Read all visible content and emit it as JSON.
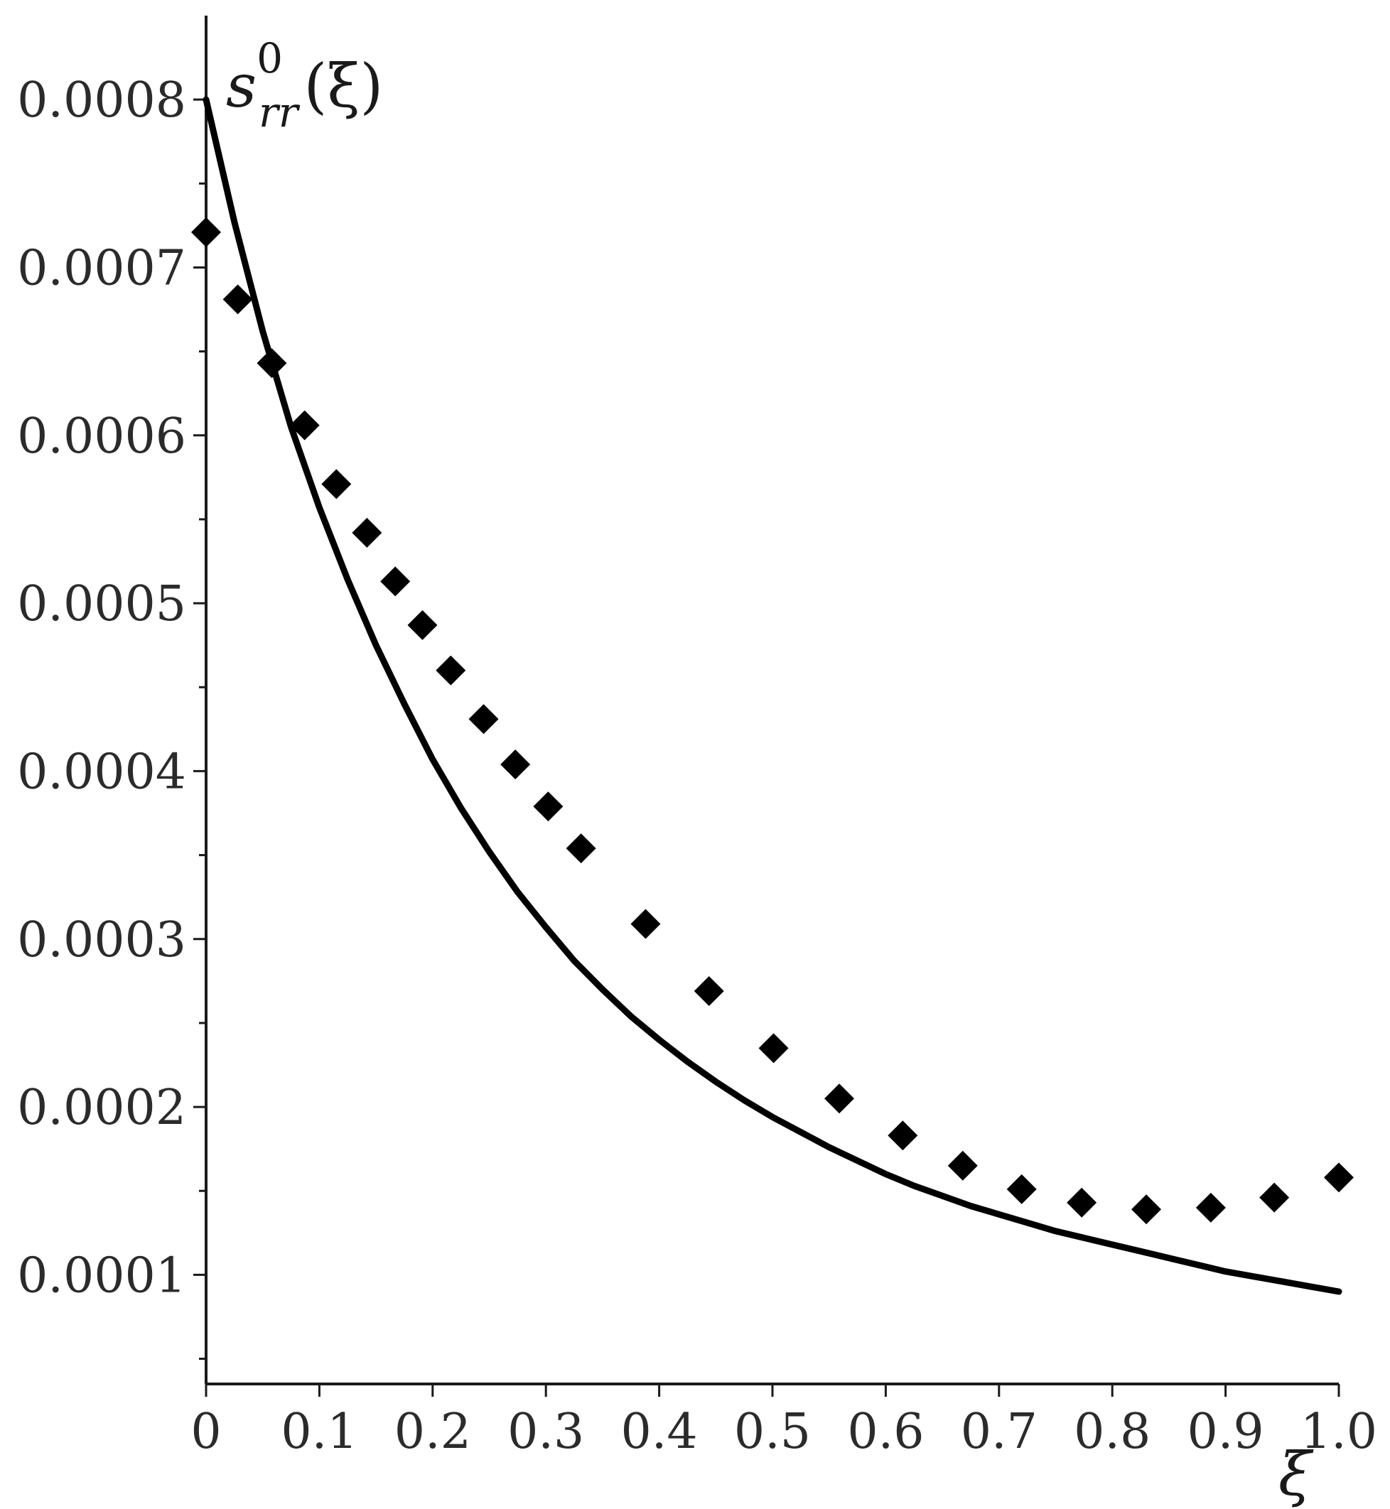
{
  "chart_data": {
    "type": "line",
    "xlabel": "ξ",
    "ylabel": {
      "base": "s",
      "superscript": "0",
      "subscript": "rr",
      "arg": "(ξ)"
    },
    "xlim": [
      0,
      1.0
    ],
    "ylim": [
      3.5e-05,
      0.00085
    ],
    "x_ticks": [
      0,
      0.1,
      0.2,
      0.3,
      0.4,
      0.5,
      0.6,
      0.7,
      0.8,
      0.9,
      1.0
    ],
    "x_tick_labels": [
      "0",
      "0.1",
      "0.2",
      "0.3",
      "0.4",
      "0.5",
      "0.6",
      "0.7",
      "0.8",
      "0.9",
      "1.0"
    ],
    "y_ticks": [
      0.0001,
      0.0002,
      0.0003,
      0.0004,
      0.0005,
      0.0006,
      0.0007,
      0.0008
    ],
    "y_tick_labels": [
      "0.0001",
      "0.0002",
      "0.0003",
      "0.0004",
      "0.0005",
      "0.0006",
      "0.0007",
      "0.0008"
    ],
    "y_minor_ticks": [
      5e-05,
      0.00015,
      0.00025,
      0.00035,
      0.00045,
      0.00055,
      0.00065,
      0.00075
    ],
    "grid": false,
    "series": [
      {
        "style": "line",
        "color": "#000000",
        "x": [
          0,
          0.025,
          0.05,
          0.075,
          0.1,
          0.125,
          0.15,
          0.175,
          0.2,
          0.225,
          0.25,
          0.275,
          0.3,
          0.325,
          0.35,
          0.375,
          0.4,
          0.425,
          0.45,
          0.475,
          0.5,
          0.525,
          0.55,
          0.575,
          0.6,
          0.625,
          0.65,
          0.675,
          0.7,
          0.725,
          0.75,
          0.775,
          0.8,
          0.825,
          0.85,
          0.875,
          0.9,
          0.925,
          0.95,
          0.975,
          1.0
        ],
        "y": [
          0.0008,
          0.000727,
          0.000662,
          0.000605,
          0.000557,
          0.000514,
          0.000475,
          0.00044,
          0.000407,
          0.000378,
          0.000352,
          0.000328,
          0.000307,
          0.000287,
          0.00027,
          0.000254,
          0.00024,
          0.000227,
          0.000215,
          0.000204,
          0.000194,
          0.000185,
          0.000176,
          0.000168,
          0.00016,
          0.000153,
          0.000147,
          0.000141,
          0.000136,
          0.000131,
          0.000126,
          0.000122,
          0.000118,
          0.000114,
          0.00011,
          0.000106,
          0.000102,
          9.9e-05,
          9.6e-05,
          9.3e-05,
          9e-05
        ]
      },
      {
        "style": "diamond-markers",
        "color": "#000000",
        "x": [
          0,
          0.028,
          0.058,
          0.087,
          0.115,
          0.142,
          0.167,
          0.191,
          0.216,
          0.245,
          0.273,
          0.302,
          0.331,
          0.388,
          0.444,
          0.501,
          0.559,
          0.615,
          0.668,
          0.72,
          0.773,
          0.83,
          0.887,
          0.943,
          1.0
        ],
        "y": [
          0.000721,
          0.000681,
          0.000643,
          0.000606,
          0.000571,
          0.000542,
          0.000513,
          0.000487,
          0.00046,
          0.000431,
          0.000404,
          0.000379,
          0.000354,
          0.000309,
          0.000269,
          0.000235,
          0.000205,
          0.000183,
          0.000165,
          0.000151,
          0.000143,
          0.000139,
          0.00014,
          0.000146,
          0.000158
        ]
      }
    ]
  }
}
